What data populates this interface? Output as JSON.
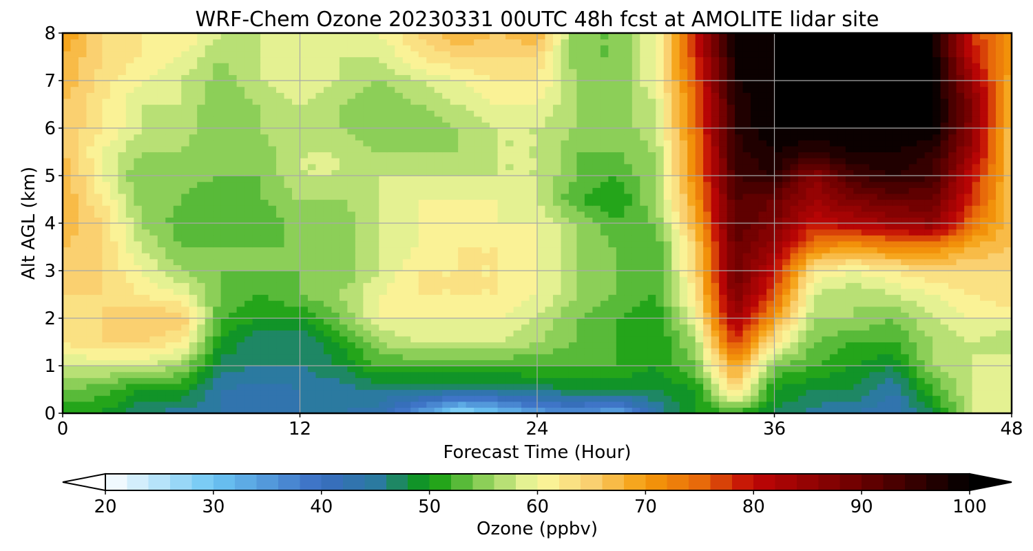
{
  "chart_data": {
    "type": "heatmap",
    "title": "WRF-Chem Ozone  20230331 00UTC 48h fcst at AMOLITE lidar site",
    "xlabel": "Forecast Time (Hour)",
    "ylabel": "Alt AGL (km)",
    "xlim": [
      0,
      48
    ],
    "ylim": [
      0,
      8
    ],
    "xticks": [
      0,
      12,
      24,
      36,
      48
    ],
    "yticks": [
      0,
      1,
      2,
      3,
      4,
      5,
      6,
      7,
      8
    ],
    "grid": true,
    "colorbar": {
      "label": "Ozone  (ppbv)",
      "range": [
        20,
        100
      ],
      "ticks": [
        20,
        30,
        40,
        50,
        60,
        70,
        80,
        90,
        100
      ],
      "extend": "both",
      "stops": [
        {
          "value": 20,
          "color": "#ffffff"
        },
        {
          "value": 30,
          "color": "#6cc6f4"
        },
        {
          "value": 40,
          "color": "#3a6cc2"
        },
        {
          "value": 45,
          "color": "#2b7aa0"
        },
        {
          "value": 50,
          "color": "#0a9a0a"
        },
        {
          "value": 55,
          "color": "#8ccf58"
        },
        {
          "value": 60,
          "color": "#fafaa0"
        },
        {
          "value": 65,
          "color": "#fad070"
        },
        {
          "value": 70,
          "color": "#f59b0a"
        },
        {
          "value": 75,
          "color": "#e86a0a"
        },
        {
          "value": 80,
          "color": "#c00505"
        },
        {
          "value": 90,
          "color": "#6a0000"
        },
        {
          "value": 100,
          "color": "#000000"
        }
      ]
    },
    "x": [
      0,
      2,
      4,
      6,
      8,
      10,
      12,
      14,
      16,
      18,
      20,
      22,
      24,
      26,
      28,
      30,
      32,
      34,
      36,
      38,
      40,
      42,
      44,
      46,
      48
    ],
    "y": [
      0,
      0.5,
      1,
      1.5,
      2,
      2.5,
      3,
      3.5,
      4,
      4.5,
      5,
      5.5,
      6,
      6.5,
      7,
      7.5,
      8
    ],
    "z": [
      [
        50,
        50,
        46,
        45,
        44,
        44,
        44,
        44,
        43,
        35,
        26,
        30,
        34,
        36,
        33,
        44,
        50,
        52,
        48,
        45,
        44,
        42,
        48,
        58,
        60
      ],
      [
        54,
        53,
        50,
        50,
        44,
        43,
        44,
        45,
        46,
        46,
        46,
        46,
        47,
        48,
        48,
        48,
        50,
        64,
        50,
        48,
        48,
        44,
        52,
        58,
        60
      ],
      [
        58,
        58,
        58,
        56,
        47,
        46,
        46,
        48,
        52,
        52,
        52,
        52,
        52,
        52,
        52,
        50,
        54,
        70,
        54,
        52,
        50,
        48,
        56,
        58,
        60
      ],
      [
        62,
        64,
        64,
        62,
        50,
        46,
        46,
        50,
        56,
        58,
        58,
        58,
        56,
        54,
        52,
        50,
        56,
        78,
        62,
        54,
        52,
        52,
        56,
        58,
        56
      ],
      [
        62,
        64,
        66,
        66,
        52,
        50,
        50,
        54,
        60,
        60,
        60,
        60,
        58,
        54,
        52,
        50,
        60,
        84,
        70,
        56,
        56,
        54,
        58,
        60,
        60
      ],
      [
        64,
        64,
        62,
        60,
        54,
        52,
        54,
        56,
        60,
        62,
        62,
        62,
        60,
        56,
        54,
        52,
        62,
        88,
        76,
        58,
        56,
        58,
        60,
        62,
        64
      ],
      [
        64,
        64,
        60,
        56,
        54,
        54,
        54,
        54,
        58,
        62,
        62,
        62,
        60,
        56,
        54,
        52,
        64,
        90,
        80,
        62,
        60,
        62,
        64,
        64,
        64
      ],
      [
        66,
        64,
        58,
        54,
        54,
        54,
        54,
        54,
        58,
        60,
        62,
        62,
        60,
        56,
        54,
        52,
        64,
        90,
        84,
        72,
        70,
        72,
        72,
        68,
        66
      ],
      [
        68,
        64,
        56,
        53,
        52,
        52,
        55,
        54,
        58,
        60,
        60,
        60,
        60,
        56,
        52,
        54,
        68,
        92,
        88,
        80,
        82,
        84,
        86,
        74,
        66
      ],
      [
        68,
        62,
        55,
        54,
        52,
        54,
        56,
        56,
        58,
        60,
        60,
        60,
        58,
        52,
        50,
        56,
        70,
        92,
        90,
        84,
        88,
        90,
        90,
        78,
        66
      ],
      [
        68,
        60,
        54,
        55,
        54,
        54,
        58,
        58,
        58,
        58,
        58,
        58,
        58,
        54,
        52,
        56,
        72,
        94,
        96,
        86,
        94,
        96,
        94,
        80,
        66
      ],
      [
        66,
        60,
        56,
        56,
        54,
        55,
        58,
        58,
        56,
        56,
        56,
        58,
        58,
        54,
        54,
        56,
        72,
        95,
        98,
        96,
        98,
        98,
        96,
        84,
        66
      ],
      [
        66,
        62,
        58,
        57,
        54,
        56,
        58,
        56,
        54,
        54,
        56,
        58,
        58,
        56,
        54,
        58,
        74,
        96,
        100,
        100,
        100,
        100,
        100,
        86,
        66
      ],
      [
        66,
        62,
        58,
        58,
        54,
        56,
        58,
        56,
        54,
        56,
        58,
        60,
        60,
        56,
        54,
        58,
        74,
        96,
        100,
        100,
        100,
        100,
        100,
        88,
        66
      ],
      [
        68,
        63,
        60,
        58,
        55,
        58,
        60,
        58,
        56,
        58,
        60,
        62,
        62,
        56,
        54,
        60,
        76,
        98,
        100,
        100,
        100,
        100,
        100,
        84,
        68
      ],
      [
        68,
        64,
        62,
        60,
        56,
        58,
        60,
        58,
        58,
        62,
        64,
        64,
        64,
        54,
        54,
        60,
        78,
        98,
        100,
        100,
        100,
        100,
        100,
        80,
        70
      ],
      [
        70,
        64,
        62,
        62,
        58,
        58,
        60,
        58,
        60,
        64,
        68,
        66,
        68,
        54,
        54,
        60,
        80,
        98,
        100,
        100,
        100,
        100,
        100,
        78,
        70
      ]
    ]
  }
}
